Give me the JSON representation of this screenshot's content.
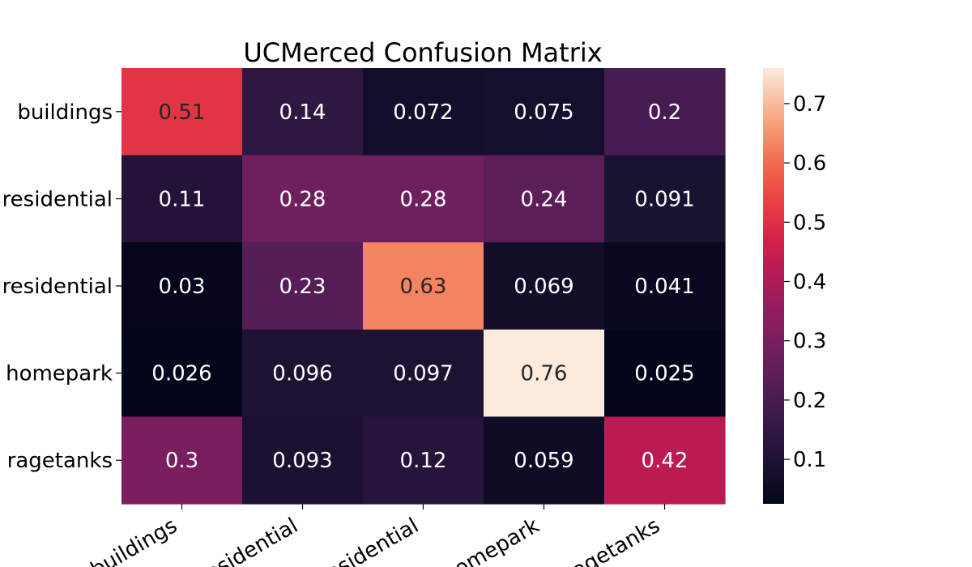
{
  "chart_data": {
    "type": "heatmap",
    "title": "UCMerced Confusion Matrix",
    "xlabel": "",
    "ylabel": "",
    "row_labels": [
      "buildings",
      "residential",
      "residential",
      "homepark",
      "ragetanks"
    ],
    "col_labels": [
      "buildings",
      "residential",
      "residential",
      "homepark",
      "ragetanks"
    ],
    "values": [
      [
        0.51,
        0.14,
        0.072,
        0.075,
        0.2
      ],
      [
        0.11,
        0.28,
        0.28,
        0.24,
        0.091
      ],
      [
        0.03,
        0.23,
        0.63,
        0.069,
        0.041
      ],
      [
        0.026,
        0.096,
        0.097,
        0.76,
        0.025
      ],
      [
        0.3,
        0.093,
        0.12,
        0.059,
        0.42
      ]
    ],
    "cell_labels": [
      [
        "0.51",
        "0.14",
        "0.072",
        "0.075",
        "0.2"
      ],
      [
        "0.11",
        "0.28",
        "0.28",
        "0.24",
        "0.091"
      ],
      [
        "0.03",
        "0.23",
        "0.63",
        "0.069",
        "0.041"
      ],
      [
        "0.026",
        "0.096",
        "0.097",
        "0.76",
        "0.025"
      ],
      [
        "0.3",
        "0.093",
        "0.12",
        "0.059",
        "0.42"
      ]
    ],
    "colorbar": {
      "range": [
        0.025,
        0.76
      ],
      "ticks": [
        0.1,
        0.2,
        0.3,
        0.4,
        0.5,
        0.6,
        0.7
      ],
      "tick_labels": [
        "0.1",
        "0.2",
        "0.3",
        "0.4",
        "0.5",
        "0.6",
        "0.7"
      ]
    },
    "colormap": "rocket",
    "grid": false,
    "legend": "colorbar-right"
  }
}
